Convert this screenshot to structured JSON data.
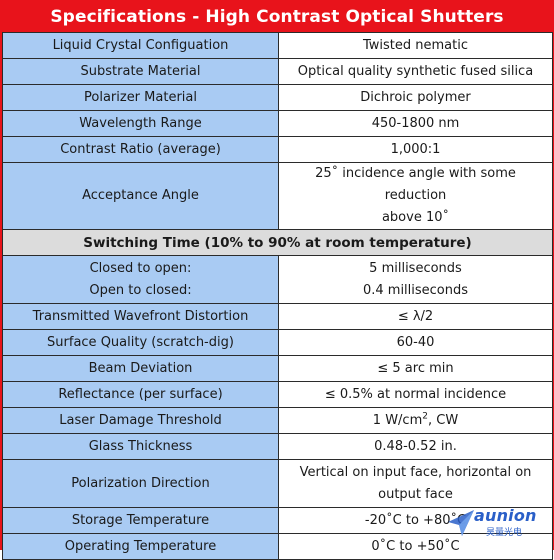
{
  "title": "Specifications - High Contrast Optical Shutters",
  "rows_top": [
    {
      "label": "Liquid Crystal Configuation",
      "value": "Twisted nematic"
    },
    {
      "label": "Substrate Material",
      "value": "Optical quality synthetic fused silica"
    },
    {
      "label": "Polarizer Material",
      "value": "Dichroic polymer"
    },
    {
      "label": "Wavelength Range",
      "value": "450-1800 nm"
    },
    {
      "label": "Contrast Ratio (average)",
      "value": "1,000:1"
    },
    {
      "label": "Acceptance Angle",
      "value_line1": "25˚ incidence angle with some reduction",
      "value_line2": "above 10˚"
    }
  ],
  "section_header": "Switching Time (10% to 90% at room temperature)",
  "switching": {
    "label1": "Closed to open:",
    "value1": "5 milliseconds",
    "label2": "Open to closed:",
    "value2": "0.4 milliseconds"
  },
  "rows_bottom": [
    {
      "label": "Transmitted Wavefront Distortion",
      "value": "≤ λ/2"
    },
    {
      "label": "Surface Quality (scratch-dig)",
      "value": "60-40"
    },
    {
      "label": "Beam Deviation",
      "value": "≤ 5 arc min"
    },
    {
      "label": "Reflectance (per surface)",
      "value": "≤ 0.5% at normal incidence"
    },
    {
      "label": "Laser Damage Threshold",
      "value_pre": "1 W/cm",
      "value_sup": "2",
      "value_post": ", CW"
    },
    {
      "label": "Glass Thickness",
      "value": "0.48-0.52 in."
    },
    {
      "label": "Polarization Direction",
      "value_line1": "Vertical on input face, horizontal on",
      "value_line2": "output face"
    },
    {
      "label": "Storage Temperature",
      "value": "-20˚C to +80˚C"
    },
    {
      "label": "Operating Temperature",
      "value": "0˚C to +50˚C"
    }
  ],
  "logo": {
    "name": "aunion",
    "name_cn": "昊量光电"
  },
  "colors": {
    "header_red": "#e8131b",
    "label_blue": "#a9cbf3",
    "section_gray": "#dcdcdc"
  }
}
